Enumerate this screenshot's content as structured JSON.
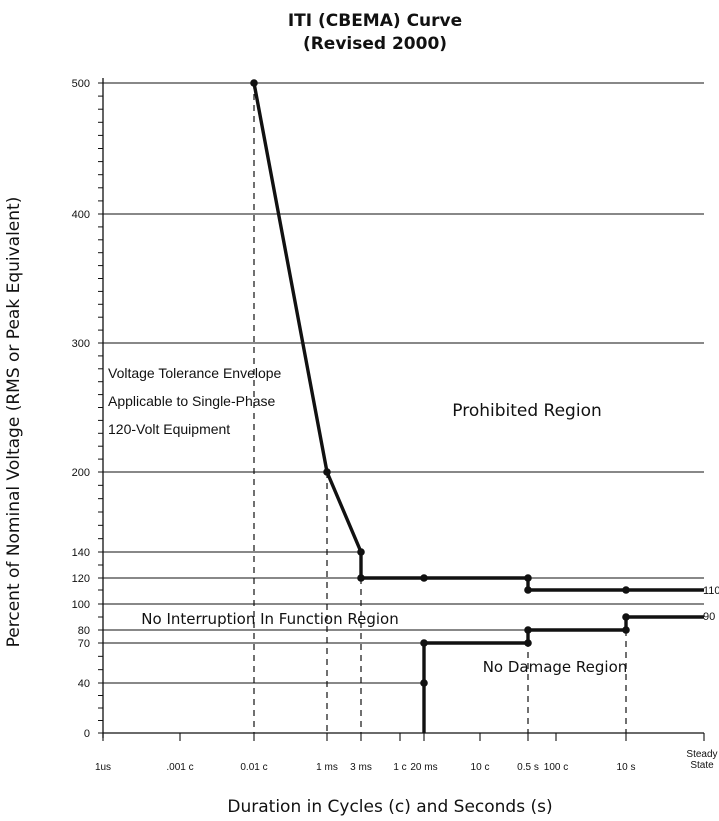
{
  "chart_data": {
    "type": "line",
    "title": "ITI (CBEMA) Curve",
    "subtitle": "(Revised 2000)",
    "xlabel": "Duration in Cycles (c) and Seconds (s)",
    "ylabel": "Percent of Nominal Voltage (RMS or Peak Equivalent)",
    "x_scale": "log",
    "grid": "horizontal lines at labeled levels",
    "y_ticks": [
      0,
      40,
      70,
      80,
      90,
      100,
      110,
      120,
      140,
      200,
      300,
      400,
      500
    ],
    "y_tick_labels": [
      "0",
      "40",
      "70",
      "80",
      "100",
      "120",
      "140",
      "200",
      "300",
      "400",
      "500"
    ],
    "x_tick_labels": [
      {
        "label": "1us",
        "seconds": 1e-06
      },
      {
        "label": ".001 c",
        "seconds": 1.67e-05
      },
      {
        "label": "0.01 c",
        "seconds": 0.000167
      },
      {
        "label": "1 ms",
        "seconds": 0.001
      },
      {
        "label": "3 ms",
        "seconds": 0.003
      },
      {
        "label": "1 c",
        "seconds": 0.0167
      },
      {
        "label": "20 ms",
        "seconds": 0.02
      },
      {
        "label": "10 c",
        "seconds": 0.167
      },
      {
        "label": "0.5 s",
        "seconds": 0.5
      },
      {
        "label": "100 c",
        "seconds": 1.67
      },
      {
        "label": "10 s",
        "seconds": 10
      },
      {
        "label": "Steady State",
        "seconds": 100
      }
    ],
    "series": [
      {
        "role": "upper tolerance curve",
        "points": [
          {
            "x": 0.000167,
            "y": 500
          },
          {
            "x": 0.001,
            "y": 200
          },
          {
            "x": 0.003,
            "y": 140
          },
          {
            "x": 0.003,
            "y": 120
          },
          {
            "x": 0.02,
            "y": 120
          },
          {
            "x": 0.5,
            "y": 120
          },
          {
            "x": 0.5,
            "y": 110
          },
          {
            "x": 10,
            "y": 110
          },
          {
            "x": 100,
            "y": 110
          }
        ],
        "end_label": "110"
      },
      {
        "role": "lower tolerance curve",
        "points": [
          {
            "x": 0.02,
            "y": 0
          },
          {
            "x": 0.02,
            "y": 40
          },
          {
            "x": 0.02,
            "y": 70
          },
          {
            "x": 0.5,
            "y": 70
          },
          {
            "x": 0.5,
            "y": 80
          },
          {
            "x": 10,
            "y": 80
          },
          {
            "x": 10,
            "y": 90
          },
          {
            "x": 100,
            "y": 90
          }
        ],
        "end_label": "90"
      }
    ],
    "annotations": {
      "envelope_lines": [
        "Voltage Tolerance Envelope",
        "Applicable to Single-Phase",
        "120-Volt Equipment"
      ],
      "prohibited": "Prohibited Region",
      "no_interruption": "No Interruption In Function Region",
      "no_damage": "No Damage Region"
    }
  }
}
